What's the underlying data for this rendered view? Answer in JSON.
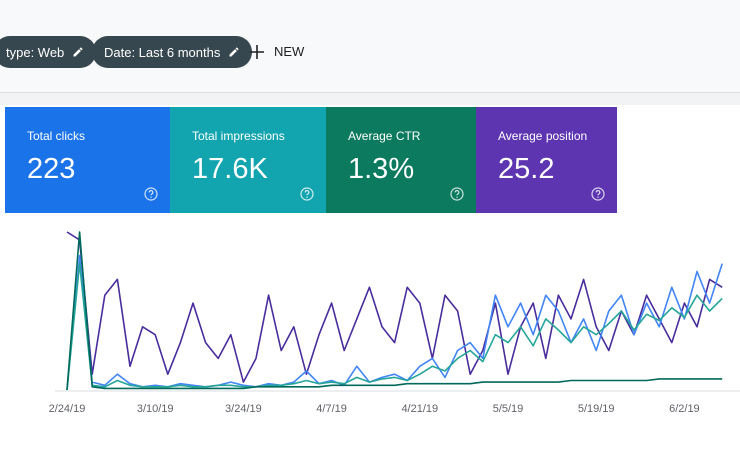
{
  "filters": [
    "type: Web",
    "Date: Last 6 months"
  ],
  "new_button": "NEW",
  "metrics": [
    {
      "label": "Total clicks",
      "value": "223",
      "color": "#1a73e8"
    },
    {
      "label": "Total impressions",
      "value": "17.6K",
      "color": "#12a4af"
    },
    {
      "label": "Average CTR",
      "value": "1.3%",
      "color": "#0b7a5f"
    },
    {
      "label": "Average position",
      "value": "25.2",
      "color": "#5e35b1"
    }
  ],
  "chart_data": {
    "type": "line",
    "categories": [
      "2/24/19",
      null,
      null,
      null,
      null,
      null,
      null,
      "3/10/19",
      null,
      null,
      null,
      null,
      null,
      null,
      "3/24/19",
      null,
      null,
      null,
      null,
      null,
      null,
      "4/7/19",
      null,
      null,
      null,
      null,
      null,
      null,
      "4/21/19",
      null,
      null,
      null,
      null,
      null,
      null,
      "5/5/19",
      null,
      null,
      null,
      null,
      null,
      null,
      "5/19/19",
      null,
      null,
      null,
      null,
      null,
      null,
      "6/2/19",
      null,
      null,
      null
    ],
    "ylim": [
      0,
      100
    ],
    "series": [
      {
        "color": "#4a2d9c",
        "values": [
          100,
          95,
          10,
          60,
          70,
          15,
          40,
          35,
          10,
          30,
          55,
          30,
          20,
          35,
          5,
          20,
          60,
          25,
          40,
          10,
          35,
          55,
          25,
          45,
          65,
          40,
          30,
          65,
          55,
          20,
          60,
          50,
          10,
          25,
          55,
          10,
          40,
          55,
          20,
          60,
          45,
          70,
          40,
          25,
          50,
          35,
          60,
          45,
          30,
          55,
          40,
          70,
          65
        ]
      },
      {
        "color": "#4285f4",
        "values": [
          0,
          85,
          5,
          3,
          10,
          4,
          2,
          3,
          2,
          4,
          3,
          2,
          3,
          5,
          3,
          2,
          4,
          3,
          5,
          12,
          4,
          6,
          3,
          15,
          5,
          8,
          10,
          6,
          15,
          20,
          8,
          25,
          30,
          20,
          60,
          40,
          55,
          35,
          60,
          50,
          30,
          45,
          25,
          50,
          60,
          35,
          55,
          40,
          65,
          45,
          75,
          55,
          80
        ]
      },
      {
        "color": "#26a69a",
        "values": [
          0,
          80,
          3,
          2,
          6,
          3,
          2,
          2,
          2,
          3,
          2,
          2,
          3,
          3,
          2,
          2,
          3,
          3,
          4,
          6,
          4,
          5,
          4,
          8,
          5,
          7,
          8,
          6,
          10,
          15,
          12,
          20,
          25,
          18,
          35,
          30,
          40,
          28,
          45,
          38,
          30,
          40,
          35,
          42,
          50,
          38,
          48,
          44,
          52,
          46,
          60,
          50,
          58
        ]
      },
      {
        "color": "#00695c",
        "values": [
          0,
          100,
          2,
          1,
          1,
          1,
          1,
          1,
          1,
          1,
          1,
          1,
          1,
          1,
          1,
          2,
          2,
          2,
          2,
          2,
          2,
          3,
          3,
          3,
          3,
          3,
          3,
          4,
          4,
          4,
          4,
          4,
          4,
          5,
          5,
          5,
          5,
          5,
          5,
          5,
          6,
          6,
          6,
          6,
          6,
          6,
          6,
          7,
          7,
          7,
          7,
          7,
          7
        ]
      }
    ]
  }
}
